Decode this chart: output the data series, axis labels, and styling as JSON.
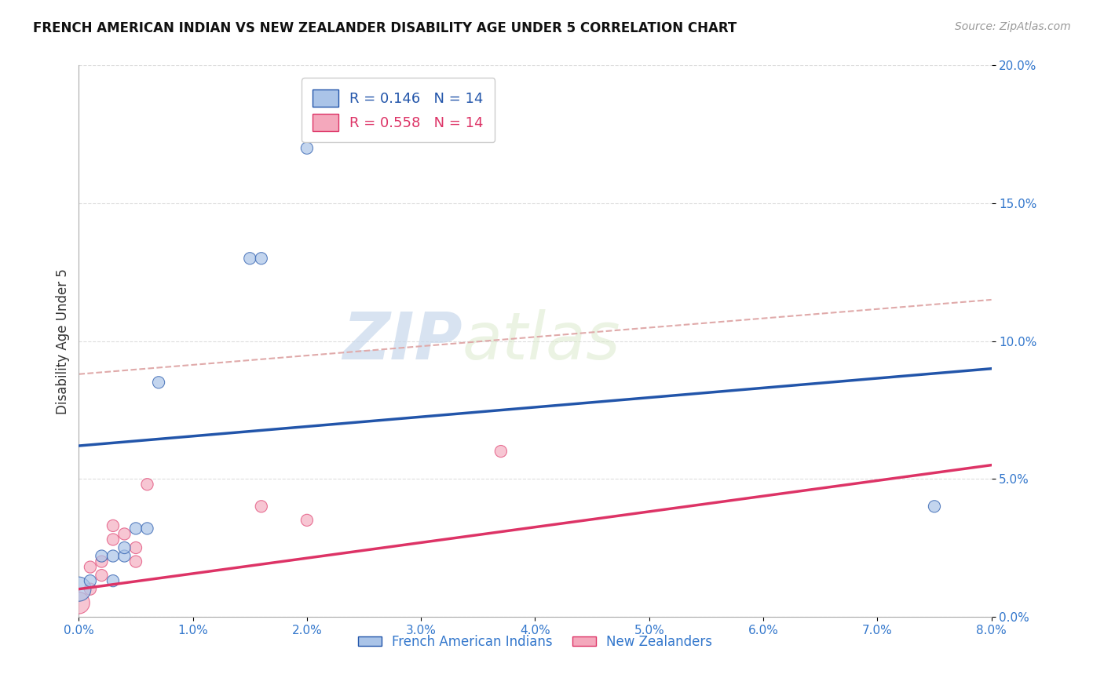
{
  "title": "FRENCH AMERICAN INDIAN VS NEW ZEALANDER DISABILITY AGE UNDER 5 CORRELATION CHART",
  "source": "Source: ZipAtlas.com",
  "xlabel_label": "French American Indians",
  "xlabel_label2": "New Zealanders",
  "ylabel": "Disability Age Under 5",
  "xlim": [
    0.0,
    0.08
  ],
  "ylim": [
    0.0,
    0.2
  ],
  "xticks": [
    0.0,
    0.01,
    0.02,
    0.03,
    0.04,
    0.05,
    0.06,
    0.07,
    0.08
  ],
  "yticks": [
    0.0,
    0.05,
    0.1,
    0.15,
    0.2
  ],
  "r_blue": 0.146,
  "n_blue": 14,
  "r_pink": 0.558,
  "n_pink": 14,
  "blue_color": "#AAC4E8",
  "pink_color": "#F4A8BC",
  "blue_line_color": "#2255AA",
  "pink_line_color": "#DD3366",
  "dashed_line_color": "#E0AAAA",
  "watermark_zip": "ZIP",
  "watermark_atlas": "atlas",
  "french_x": [
    0.0,
    0.001,
    0.002,
    0.003,
    0.003,
    0.004,
    0.004,
    0.005,
    0.006,
    0.007,
    0.015,
    0.016,
    0.02,
    0.075
  ],
  "french_y": [
    0.01,
    0.013,
    0.022,
    0.013,
    0.022,
    0.022,
    0.025,
    0.032,
    0.032,
    0.085,
    0.13,
    0.13,
    0.17,
    0.04
  ],
  "french_size": [
    500,
    120,
    120,
    120,
    120,
    120,
    120,
    120,
    120,
    120,
    120,
    120,
    120,
    120
  ],
  "nz_x": [
    0.0,
    0.001,
    0.001,
    0.002,
    0.002,
    0.003,
    0.003,
    0.004,
    0.005,
    0.005,
    0.006,
    0.016,
    0.02,
    0.037
  ],
  "nz_y": [
    0.005,
    0.01,
    0.018,
    0.015,
    0.02,
    0.028,
    0.033,
    0.03,
    0.025,
    0.02,
    0.048,
    0.04,
    0.035,
    0.06
  ],
  "nz_size": [
    400,
    120,
    120,
    120,
    120,
    120,
    120,
    120,
    120,
    120,
    120,
    120,
    120,
    120
  ],
  "blue_line_x0": 0.0,
  "blue_line_y0": 0.062,
  "blue_line_x1": 0.08,
  "blue_line_y1": 0.09,
  "pink_line_x0": 0.0,
  "pink_line_y0": 0.01,
  "pink_line_x1": 0.08,
  "pink_line_y1": 0.055,
  "dashed_line_x0": 0.0,
  "dashed_line_y0": 0.088,
  "dashed_line_x1": 0.08,
  "dashed_line_y1": 0.115
}
